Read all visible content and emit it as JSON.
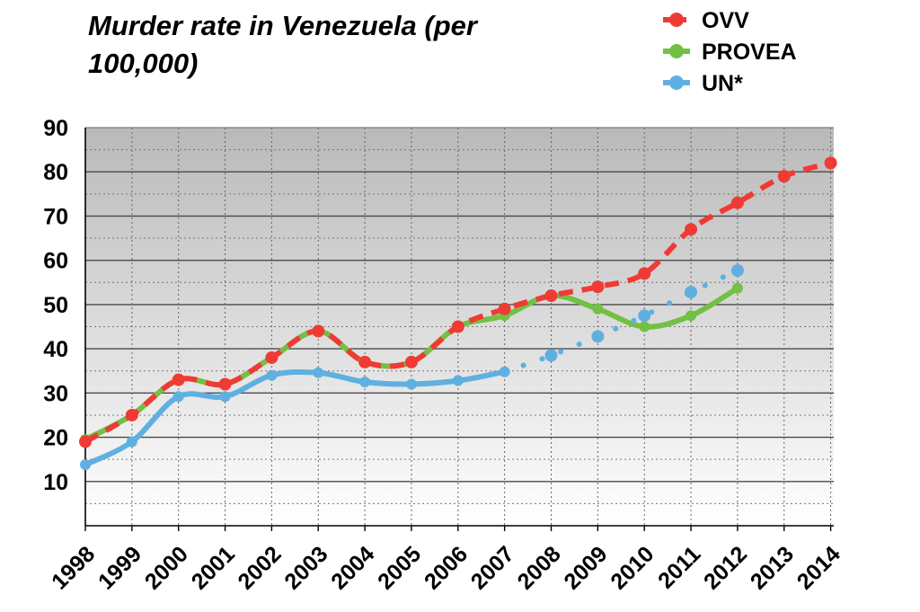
{
  "chart_data": {
    "type": "line",
    "title": "Murder rate in Venezuela (per 100,000)",
    "xlabel": "",
    "ylabel": "",
    "ylim": [
      0,
      90
    ],
    "yticks": [
      10,
      20,
      30,
      40,
      50,
      60,
      70,
      80,
      90
    ],
    "categories": [
      "1998",
      "1999",
      "2000",
      "2001",
      "2002",
      "2003",
      "2004",
      "2005",
      "2006",
      "2007",
      "2008",
      "2009",
      "2010",
      "2011",
      "2012",
      "2013",
      "2014"
    ],
    "grid": true,
    "legend_position": "top-right",
    "series": [
      {
        "name": "OVV",
        "color": "#f03a35",
        "style": "dashed",
        "x": [
          1998,
          1999,
          2000,
          2001,
          2002,
          2003,
          2004,
          2005,
          2006,
          2007,
          2008,
          2009,
          2010,
          2011,
          2012,
          2013,
          2014
        ],
        "values": [
          19,
          25,
          33,
          32,
          38,
          44,
          37,
          37,
          45,
          49,
          52,
          54,
          57,
          67,
          73,
          79,
          82
        ]
      },
      {
        "name": "PROVEA",
        "color": "#72c044",
        "style": "solid",
        "x": [
          1998,
          1999,
          2000,
          2001,
          2002,
          2003,
          2004,
          2005,
          2006,
          2007,
          2008,
          2009,
          2010,
          2011,
          2012
        ],
        "values": [
          19.5,
          25,
          33,
          32,
          38,
          44,
          37,
          37,
          45,
          47.5,
          52,
          49,
          45,
          47.5,
          53.7
        ]
      },
      {
        "name": "UN*",
        "color": "#5fb0e0",
        "style": "solid-then-dotted",
        "x": [
          1998,
          1999,
          2000,
          2001,
          2002,
          2003,
          2004,
          2005,
          2006,
          2007,
          2008,
          2009,
          2010,
          2011,
          2012
        ],
        "values": [
          13.8,
          19,
          29.2,
          29.2,
          34,
          34.6,
          32.5,
          32,
          32.8,
          34.8,
          38.5,
          42.8,
          47.5,
          52.8,
          57.7
        ]
      }
    ]
  }
}
